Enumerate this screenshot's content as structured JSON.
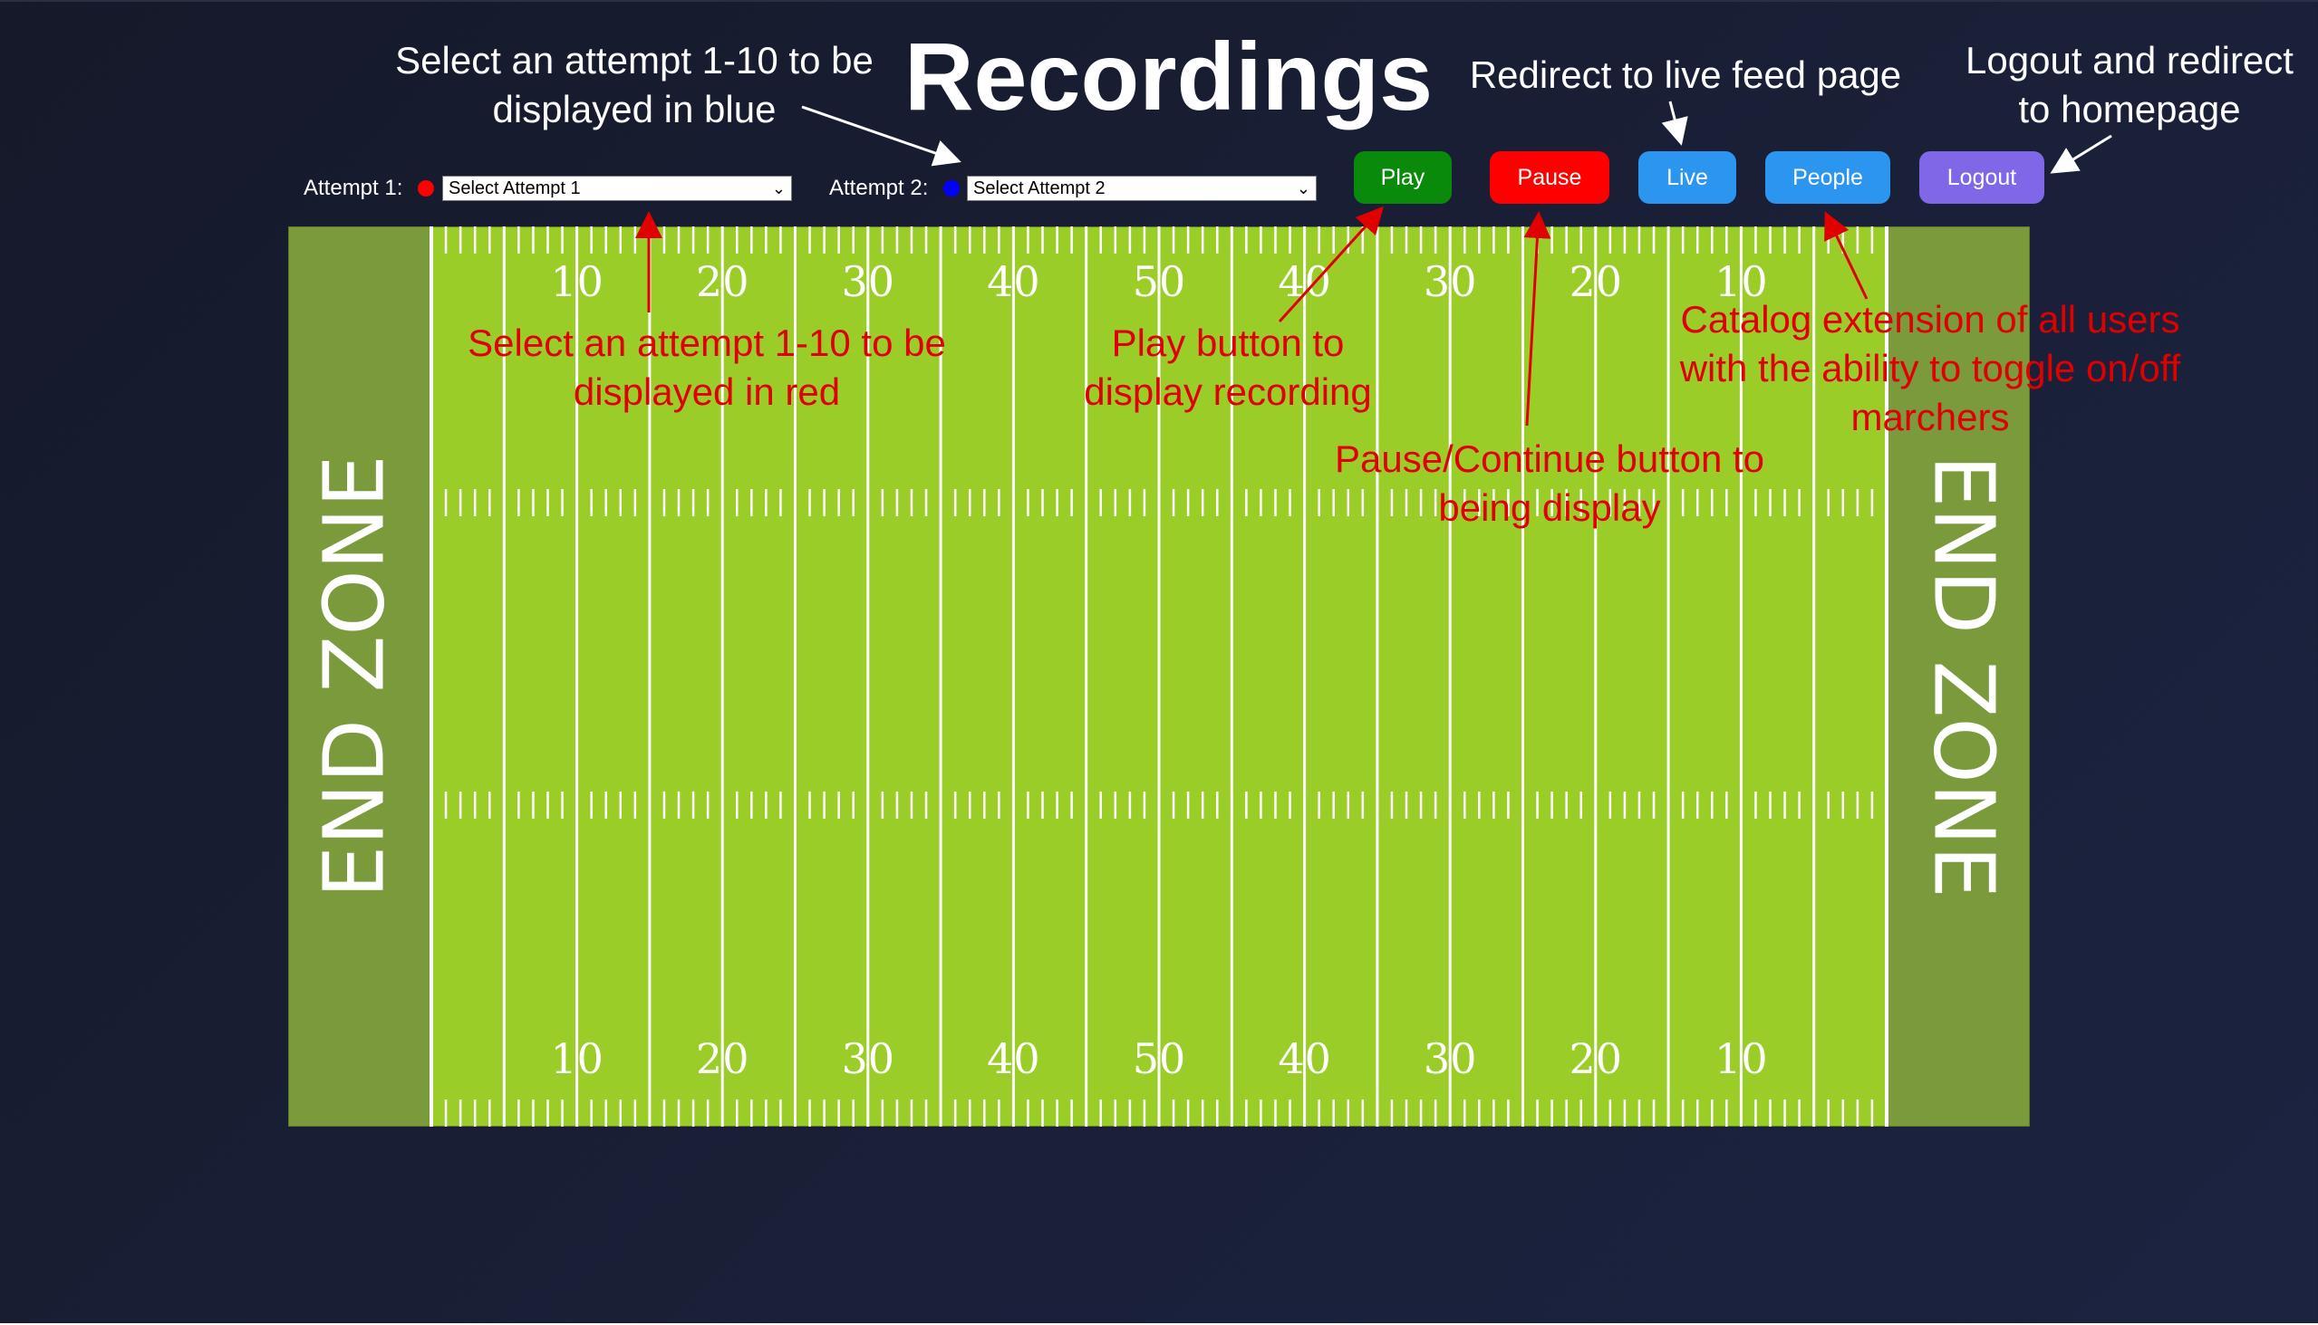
{
  "title": "Recordings",
  "attempt1": {
    "label": "Attempt 1:",
    "dot_color": "#ff0000",
    "selected": "Select Attempt 1"
  },
  "attempt2": {
    "label": "Attempt 2:",
    "dot_color": "#0000ff",
    "selected": "Select Attempt 2"
  },
  "buttons": {
    "play": {
      "label": "Play",
      "color": "#0a8a0a"
    },
    "pause": {
      "label": "Pause",
      "color": "#ff0000"
    },
    "live": {
      "label": "Live",
      "color": "#2b95f0"
    },
    "people": {
      "label": "People",
      "color": "#2b95f0"
    },
    "logout": {
      "label": "Logout",
      "color": "#8067e8"
    }
  },
  "field": {
    "end_zone_left": "END ZONE",
    "end_zone_right": "END ZONE",
    "turf_color": "#9acd28",
    "end_zone_color": "#7a9a3c",
    "yard_numbers": [
      "10",
      "20",
      "30",
      "40",
      "50",
      "40",
      "30",
      "20",
      "10"
    ]
  },
  "annotations": {
    "blue_line1": "Select an attempt 1-10 to be",
    "blue_line2": "displayed in blue",
    "live_text": "Redirect to live feed page",
    "logout_line1": "Logout and redirect",
    "logout_line2": "to homepage",
    "red_line1": "Select an attempt 1-10 to be",
    "red_line2": "displayed in red",
    "play_line1": "Play button to",
    "play_line2": "display recording",
    "pause_line1": "Pause/Continue button to",
    "pause_line2": "being display",
    "people_line1": "Catalog extension of all users",
    "people_line2": "with the ability to toggle on/off",
    "people_line3": "marchers"
  }
}
